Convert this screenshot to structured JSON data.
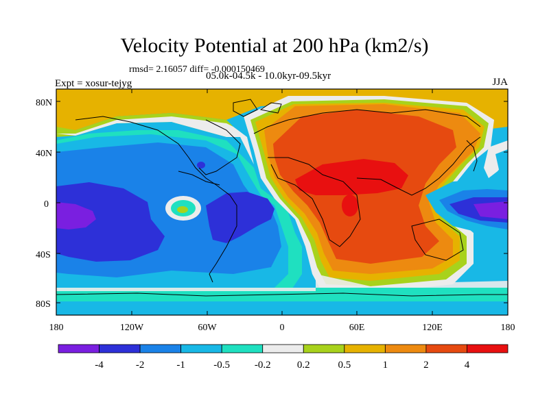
{
  "figure": {
    "title": "Velocity Potential at 200 hPa (km2/s)",
    "stats_line": "rmsd= 2.16057 diff= -0.000150469",
    "period_line": "05.0k-04.5k - 10.0kyr-09.5kyr",
    "left_label": "Expt = xosur-tejyg",
    "right_label": "JJA"
  },
  "map": {
    "lat_ticks": [
      "80N",
      "40N",
      "0",
      "40S",
      "80S"
    ],
    "lon_ticks": [
      "180",
      "120W",
      "60W",
      "0",
      "60E",
      "120E",
      "180"
    ],
    "colors": {
      "c_m4": "#7a1fe0",
      "c_m2": "#2d30d8",
      "c_m1": "#1a82e8",
      "c_m05": "#18b8e6",
      "c_m02": "#1fe0c0",
      "c_0": "#ececec",
      "c_02": "#a8d21c",
      "c_05": "#e6b200",
      "c_1": "#ed8a10",
      "c_2": "#e64a10",
      "c_4": "#e81010"
    }
  },
  "colorbar": {
    "labels": [
      "-4",
      "-2",
      "-1",
      "-0.5",
      "-0.2",
      "0.2",
      "0.5",
      "1",
      "2",
      "4"
    ],
    "colors": [
      "#7a1fe0",
      "#2d30d8",
      "#1a82e8",
      "#18b8e6",
      "#1fe0c0",
      "#ececec",
      "#a8d21c",
      "#e6b200",
      "#ed8a10",
      "#e64a10",
      "#e81010"
    ]
  }
}
